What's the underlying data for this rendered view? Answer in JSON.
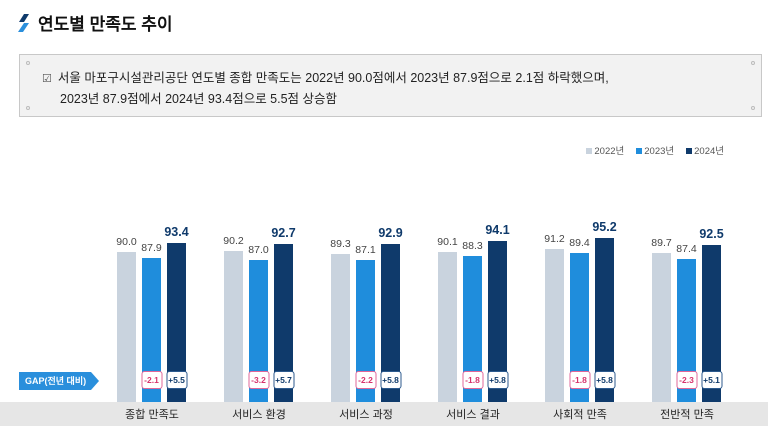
{
  "header": {
    "title": "연도별 만족도 추이"
  },
  "summary": {
    "line1": "서울 마포구시설관리공단 연도별 종합 만족도는 2022년 90.0점에서 2023년 87.9점으로 2.1점 하락했으며,",
    "line2": "2023년 87.9점에서 2024년 93.4점으로 5.5점 상승함"
  },
  "chart_data": {
    "type": "bar",
    "title": "연도별 만족도 추이",
    "categories": [
      "종합 만족도",
      "서비스 환경",
      "서비스 과정",
      "서비스 결과",
      "사회적 만족",
      "전반적 만족"
    ],
    "series": [
      {
        "name": "2022년",
        "color": "#c9d3de",
        "values": [
          90.0,
          90.2,
          89.3,
          90.1,
          91.2,
          89.7
        ]
      },
      {
        "name": "2023년",
        "color": "#1f8ddc",
        "values": [
          87.9,
          87.0,
          87.1,
          88.3,
          89.4,
          87.4
        ]
      },
      {
        "name": "2024년",
        "color": "#0f3a6b",
        "values": [
          93.4,
          92.7,
          92.9,
          94.1,
          95.2,
          92.5
        ]
      }
    ],
    "gap_label": "GAP(전년 대비)",
    "gaps": [
      {
        "prev": "-2.1",
        "curr": "+5.5"
      },
      {
        "prev": "-3.2",
        "curr": "+5.7"
      },
      {
        "prev": "-2.2",
        "curr": "+5.8"
      },
      {
        "prev": "-1.8",
        "curr": "+5.8"
      },
      {
        "prev": "-1.8",
        "curr": "+5.8"
      },
      {
        "prev": "-2.3",
        "curr": "+5.1"
      }
    ],
    "legend_position": "top-right",
    "grid": false
  }
}
